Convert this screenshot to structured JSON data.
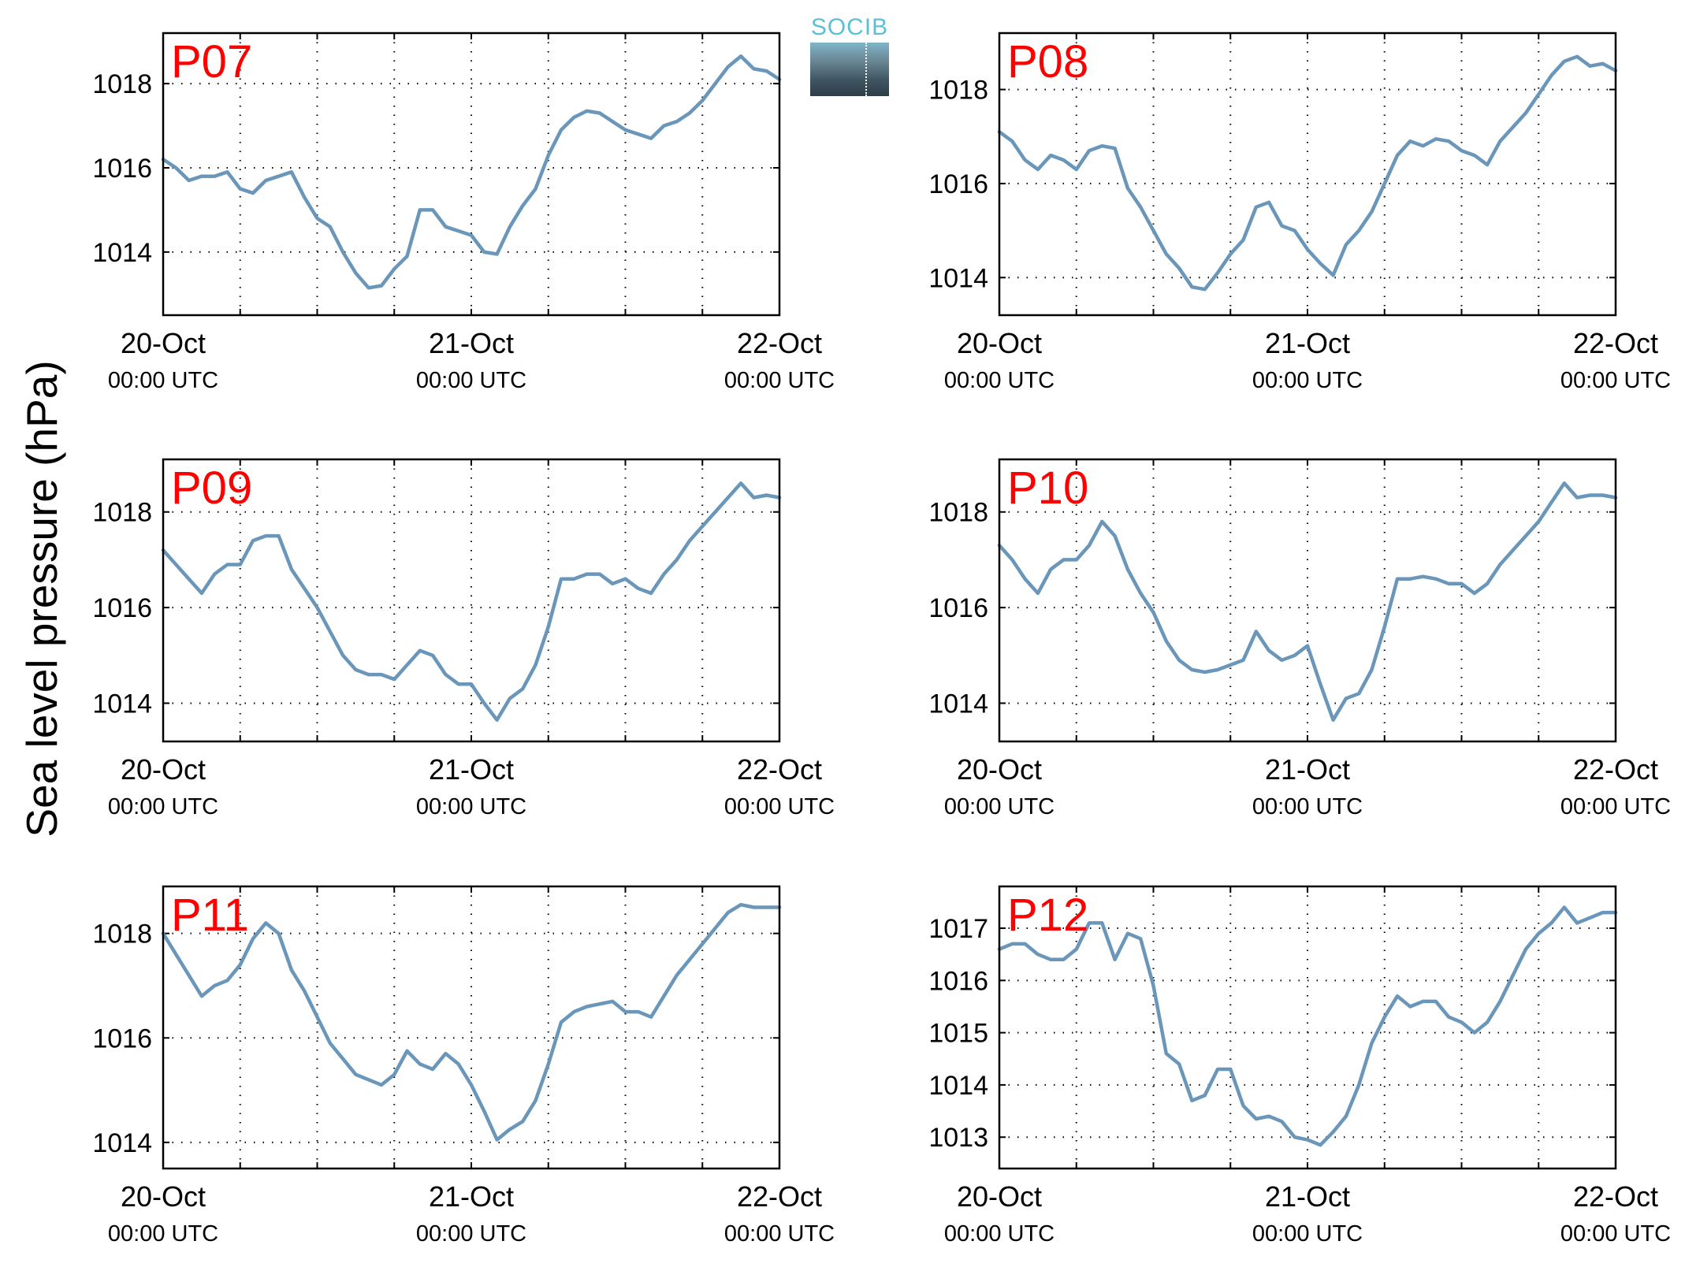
{
  "figure": {
    "ylabel": "Sea level pressure (hPa)",
    "logo_text": "SOCIB",
    "line_color": "#6a96ba",
    "title_color": "#ff0000"
  },
  "chart_data": [
    {
      "type": "line",
      "title": "P07",
      "x_tick_labels": [
        [
          "20-Oct",
          "00:00 UTC"
        ],
        [
          "21-Oct",
          "00:00 UTC"
        ],
        [
          "22-Oct",
          "00:00 UTC"
        ]
      ],
      "xlim_hours": [
        0,
        48
      ],
      "ylim": [
        1012.5,
        1019.2
      ],
      "yticks": [
        1014,
        1016,
        1018
      ],
      "x_hours": [
        0,
        1,
        2,
        3,
        4,
        5,
        6,
        7,
        8,
        9,
        10,
        11,
        12,
        13,
        14,
        15,
        16,
        17,
        18,
        19,
        20,
        21,
        22,
        23,
        24,
        25,
        26,
        27,
        28,
        29,
        30,
        31,
        32,
        33,
        34,
        35,
        36,
        37,
        38,
        39,
        40,
        41,
        42,
        43,
        44,
        45,
        46,
        47,
        48
      ],
      "values": [
        1016.2,
        1016.0,
        1015.7,
        1015.8,
        1015.8,
        1015.9,
        1015.5,
        1015.4,
        1015.7,
        1015.8,
        1015.9,
        1015.3,
        1014.8,
        1014.6,
        1014.0,
        1013.5,
        1013.15,
        1013.2,
        1013.6,
        1013.9,
        1015.0,
        1015.0,
        1014.6,
        1014.5,
        1014.4,
        1014.0,
        1013.95,
        1014.6,
        1015.1,
        1015.5,
        1016.3,
        1016.9,
        1017.2,
        1017.35,
        1017.3,
        1017.1,
        1016.9,
        1016.8,
        1016.7,
        1017.0,
        1017.1,
        1017.3,
        1017.6,
        1018.0,
        1018.4,
        1018.65,
        1018.35,
        1018.3,
        1018.1
      ]
    },
    {
      "type": "line",
      "title": "P08",
      "x_tick_labels": [
        [
          "20-Oct",
          "00:00 UTC"
        ],
        [
          "21-Oct",
          "00:00 UTC"
        ],
        [
          "22-Oct",
          "00:00 UTC"
        ]
      ],
      "xlim_hours": [
        0,
        48
      ],
      "ylim": [
        1013.2,
        1019.2
      ],
      "yticks": [
        1014,
        1016,
        1018
      ],
      "x_hours": [
        0,
        1,
        2,
        3,
        4,
        5,
        6,
        7,
        8,
        9,
        10,
        11,
        12,
        13,
        14,
        15,
        16,
        17,
        18,
        19,
        20,
        21,
        22,
        23,
        24,
        25,
        26,
        27,
        28,
        29,
        30,
        31,
        32,
        33,
        34,
        35,
        36,
        37,
        38,
        39,
        40,
        41,
        42,
        43,
        44,
        45,
        46,
        47,
        48
      ],
      "values": [
        1017.1,
        1016.9,
        1016.5,
        1016.3,
        1016.6,
        1016.5,
        1016.3,
        1016.7,
        1016.8,
        1016.75,
        1015.9,
        1015.5,
        1015.0,
        1014.5,
        1014.2,
        1013.8,
        1013.75,
        1014.1,
        1014.5,
        1014.8,
        1015.5,
        1015.6,
        1015.1,
        1015.0,
        1014.6,
        1014.3,
        1014.05,
        1014.7,
        1015.0,
        1015.4,
        1016.0,
        1016.6,
        1016.9,
        1016.8,
        1016.95,
        1016.9,
        1016.7,
        1016.6,
        1016.4,
        1016.9,
        1017.2,
        1017.5,
        1017.9,
        1018.3,
        1018.6,
        1018.7,
        1018.5,
        1018.55,
        1018.4
      ]
    },
    {
      "type": "line",
      "title": "P09",
      "x_tick_labels": [
        [
          "20-Oct",
          "00:00 UTC"
        ],
        [
          "21-Oct",
          "00:00 UTC"
        ],
        [
          "22-Oct",
          "00:00 UTC"
        ]
      ],
      "xlim_hours": [
        0,
        48
      ],
      "ylim": [
        1013.2,
        1019.1
      ],
      "yticks": [
        1014,
        1016,
        1018
      ],
      "x_hours": [
        0,
        1,
        2,
        3,
        4,
        5,
        6,
        7,
        8,
        9,
        10,
        11,
        12,
        13,
        14,
        15,
        16,
        17,
        18,
        19,
        20,
        21,
        22,
        23,
        24,
        25,
        26,
        27,
        28,
        29,
        30,
        31,
        32,
        33,
        34,
        35,
        36,
        37,
        38,
        39,
        40,
        41,
        42,
        43,
        44,
        45,
        46,
        47,
        48
      ],
      "values": [
        1017.2,
        1016.9,
        1016.6,
        1016.3,
        1016.7,
        1016.9,
        1016.9,
        1017.4,
        1017.5,
        1017.5,
        1016.8,
        1016.4,
        1016.0,
        1015.5,
        1015.0,
        1014.7,
        1014.6,
        1014.6,
        1014.5,
        1014.8,
        1015.1,
        1015.0,
        1014.6,
        1014.4,
        1014.4,
        1014.0,
        1013.65,
        1014.1,
        1014.3,
        1014.8,
        1015.6,
        1016.6,
        1016.6,
        1016.7,
        1016.7,
        1016.5,
        1016.6,
        1016.4,
        1016.3,
        1016.7,
        1017.0,
        1017.4,
        1017.7,
        1018.0,
        1018.3,
        1018.6,
        1018.3,
        1018.35,
        1018.3
      ]
    },
    {
      "type": "line",
      "title": "P10",
      "x_tick_labels": [
        [
          "20-Oct",
          "00:00 UTC"
        ],
        [
          "21-Oct",
          "00:00 UTC"
        ],
        [
          "22-Oct",
          "00:00 UTC"
        ]
      ],
      "xlim_hours": [
        0,
        48
      ],
      "ylim": [
        1013.2,
        1019.1
      ],
      "yticks": [
        1014,
        1016,
        1018
      ],
      "x_hours": [
        0,
        1,
        2,
        3,
        4,
        5,
        6,
        7,
        8,
        9,
        10,
        11,
        12,
        13,
        14,
        15,
        16,
        17,
        18,
        19,
        20,
        21,
        22,
        23,
        24,
        25,
        26,
        27,
        28,
        29,
        30,
        31,
        32,
        33,
        34,
        35,
        36,
        37,
        38,
        39,
        40,
        41,
        42,
        43,
        44,
        45,
        46,
        47,
        48
      ],
      "values": [
        1017.3,
        1017.0,
        1016.6,
        1016.3,
        1016.8,
        1017.0,
        1017.0,
        1017.3,
        1017.8,
        1017.5,
        1016.8,
        1016.3,
        1015.9,
        1015.3,
        1014.9,
        1014.7,
        1014.65,
        1014.7,
        1014.8,
        1014.9,
        1015.5,
        1015.1,
        1014.9,
        1015.0,
        1015.2,
        1014.4,
        1013.65,
        1014.1,
        1014.2,
        1014.7,
        1015.6,
        1016.6,
        1016.6,
        1016.65,
        1016.6,
        1016.5,
        1016.5,
        1016.3,
        1016.5,
        1016.9,
        1017.2,
        1017.5,
        1017.8,
        1018.2,
        1018.6,
        1018.3,
        1018.35,
        1018.35,
        1018.3
      ]
    },
    {
      "type": "line",
      "title": "P11",
      "x_tick_labels": [
        [
          "20-Oct",
          "00:00 UTC"
        ],
        [
          "21-Oct",
          "00:00 UTC"
        ],
        [
          "22-Oct",
          "00:00 UTC"
        ]
      ],
      "xlim_hours": [
        0,
        48
      ],
      "ylim": [
        1013.5,
        1018.9
      ],
      "yticks": [
        1014,
        1016,
        1018
      ],
      "x_hours": [
        0,
        1,
        2,
        3,
        4,
        5,
        6,
        7,
        8,
        9,
        10,
        11,
        12,
        13,
        14,
        15,
        16,
        17,
        18,
        19,
        20,
        21,
        22,
        23,
        24,
        25,
        26,
        27,
        28,
        29,
        30,
        31,
        32,
        33,
        34,
        35,
        36,
        37,
        38,
        39,
        40,
        41,
        42,
        43,
        44,
        45,
        46,
        47,
        48
      ],
      "values": [
        1018.0,
        1017.6,
        1017.2,
        1016.8,
        1017.0,
        1017.1,
        1017.4,
        1017.9,
        1018.2,
        1018.0,
        1017.3,
        1016.9,
        1016.4,
        1015.9,
        1015.6,
        1015.3,
        1015.2,
        1015.1,
        1015.3,
        1015.75,
        1015.5,
        1015.4,
        1015.7,
        1015.5,
        1015.1,
        1014.6,
        1014.05,
        1014.25,
        1014.4,
        1014.8,
        1015.5,
        1016.3,
        1016.5,
        1016.6,
        1016.65,
        1016.7,
        1016.5,
        1016.5,
        1016.4,
        1016.8,
        1017.2,
        1017.5,
        1017.8,
        1018.1,
        1018.4,
        1018.55,
        1018.5,
        1018.5,
        1018.5
      ]
    },
    {
      "type": "line",
      "title": "P12",
      "x_tick_labels": [
        [
          "20-Oct",
          "00:00 UTC"
        ],
        [
          "21-Oct",
          "00:00 UTC"
        ],
        [
          "22-Oct",
          "00:00 UTC"
        ]
      ],
      "xlim_hours": [
        0,
        48
      ],
      "ylim": [
        1012.4,
        1017.8
      ],
      "yticks": [
        1013,
        1014,
        1015,
        1016,
        1017
      ],
      "x_hours": [
        0,
        1,
        2,
        3,
        4,
        5,
        6,
        7,
        8,
        9,
        10,
        11,
        12,
        13,
        14,
        15,
        16,
        17,
        18,
        19,
        20,
        21,
        22,
        23,
        24,
        25,
        26,
        27,
        28,
        29,
        30,
        31,
        32,
        33,
        34,
        35,
        36,
        37,
        38,
        39,
        40,
        41,
        42,
        43,
        44,
        45,
        46,
        47,
        48
      ],
      "values": [
        1016.6,
        1016.7,
        1016.7,
        1016.5,
        1016.4,
        1016.4,
        1016.6,
        1017.1,
        1017.1,
        1016.4,
        1016.9,
        1016.8,
        1015.9,
        1014.6,
        1014.4,
        1013.7,
        1013.8,
        1014.3,
        1014.3,
        1013.6,
        1013.35,
        1013.4,
        1013.3,
        1013.0,
        1012.95,
        1012.85,
        1013.1,
        1013.4,
        1014.0,
        1014.8,
        1015.3,
        1015.7,
        1015.5,
        1015.6,
        1015.6,
        1015.3,
        1015.2,
        1015.0,
        1015.2,
        1015.6,
        1016.1,
        1016.6,
        1016.9,
        1017.1,
        1017.4,
        1017.1,
        1017.2,
        1017.3,
        1017.3
      ]
    }
  ]
}
